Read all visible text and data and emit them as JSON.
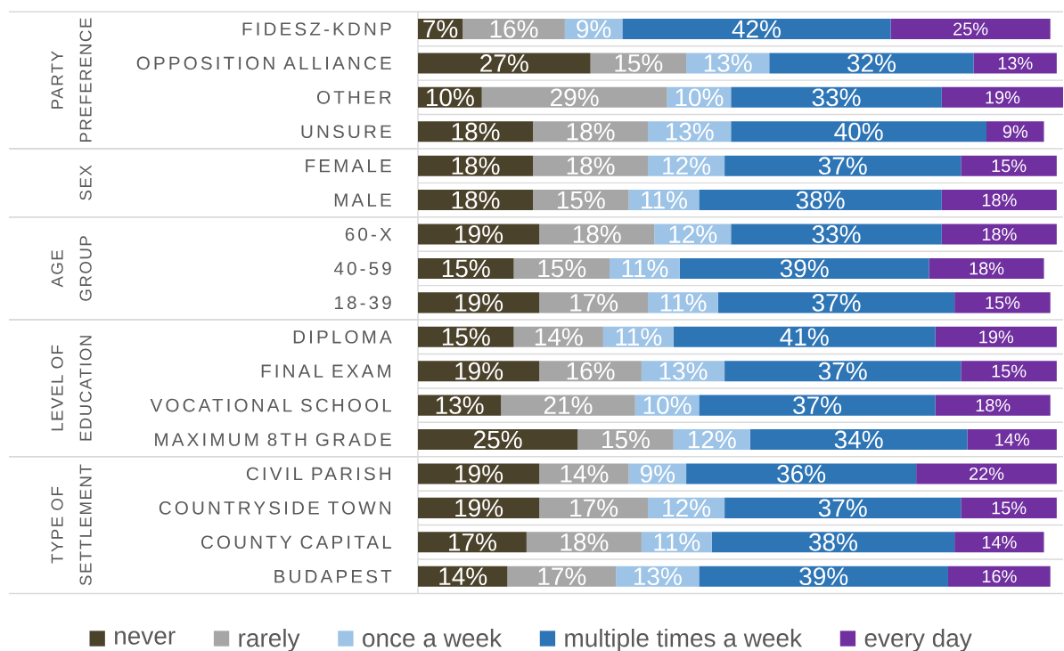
{
  "chart_data": {
    "type": "bar",
    "orientation": "horizontal",
    "stacked": true,
    "categories": [
      "FIDESZ-KDNP",
      "OPPOSITION ALLIANCE",
      "OTHER",
      "UNSURE",
      "FEMALE",
      "MALE",
      "60-X",
      "40-59",
      "18-39",
      "DIPLOMA",
      "FINAL EXAM",
      "VOCATIONAL SCHOOL",
      "MAXIMUM 8TH GRADE",
      "CIVIL PARISH",
      "COUNTRYSIDE TOWN",
      "COUNTY CAPITAL",
      "BUDAPEST"
    ],
    "series": [
      {
        "name": "never",
        "color": "#4b422b",
        "values": [
          7,
          27,
          10,
          18,
          18,
          18,
          19,
          15,
          19,
          15,
          19,
          13,
          25,
          19,
          19,
          17,
          14
        ],
        "value_labels": [
          "7%",
          "27%",
          "10%",
          "18%",
          "18%",
          "18%",
          "19%",
          "15%",
          "19%",
          "15%",
          "19%",
          "13%",
          "25%",
          "19%",
          "19%",
          "17%",
          "14%"
        ]
      },
      {
        "name": "rarely",
        "color": "#a6a6a6",
        "values": [
          16,
          15,
          29,
          18,
          18,
          15,
          18,
          15,
          17,
          14,
          16,
          21,
          15,
          14,
          17,
          18,
          17
        ],
        "value_labels": [
          "16%",
          "15%",
          "29%",
          "18%",
          "18%",
          "15%",
          "18%",
          "15%",
          "17%",
          "14%",
          "16%",
          "21%",
          "15%",
          "14%",
          "17%",
          "18%",
          "17%"
        ]
      },
      {
        "name": "once a week",
        "color": "#9dc3e6",
        "values": [
          9,
          13,
          10,
          13,
          12,
          11,
          12,
          11,
          11,
          11,
          13,
          10,
          12,
          9,
          12,
          11,
          13
        ],
        "value_labels": [
          "9%",
          "13%",
          "10%",
          "13%",
          "12%",
          "11%",
          "12%",
          "11%",
          "11%",
          "11%",
          "13%",
          "10%",
          "12%",
          "9%",
          "12%",
          "11%",
          "13%"
        ]
      },
      {
        "name": "multiple times a week",
        "color": "#2e75b6",
        "values": [
          42,
          32,
          33,
          40,
          37,
          38,
          33,
          39,
          37,
          41,
          37,
          37,
          34,
          36,
          37,
          38,
          39
        ],
        "value_labels": [
          "42%",
          "32%",
          "33%",
          "40%",
          "37%",
          "38%",
          "33%",
          "39%",
          "37%",
          "41%",
          "37%",
          "37%",
          "34%",
          "36%",
          "37%",
          "38%",
          "39%"
        ]
      },
      {
        "name": "every day",
        "color": "#7030a0",
        "values": [
          25,
          13,
          19,
          9,
          15,
          18,
          18,
          18,
          15,
          19,
          15,
          18,
          14,
          22,
          15,
          14,
          16
        ],
        "value_labels": [
          "25%",
          "13%",
          "19%",
          "9%",
          "15%",
          "18%",
          "18%",
          "18%",
          "15%",
          "19%",
          "15%",
          "18%",
          "14%",
          "22%",
          "15%",
          "14%",
          "16%"
        ]
      }
    ],
    "grid": "y",
    "legend": "bottom",
    "tick_labels": "y",
    "annotations": [
      "PARTY PREFERENCE",
      "SEX",
      "AGE GROUP",
      "LEVEL OF EDUCATION",
      "TYPE OF SETTLEMENT"
    ]
  }
}
